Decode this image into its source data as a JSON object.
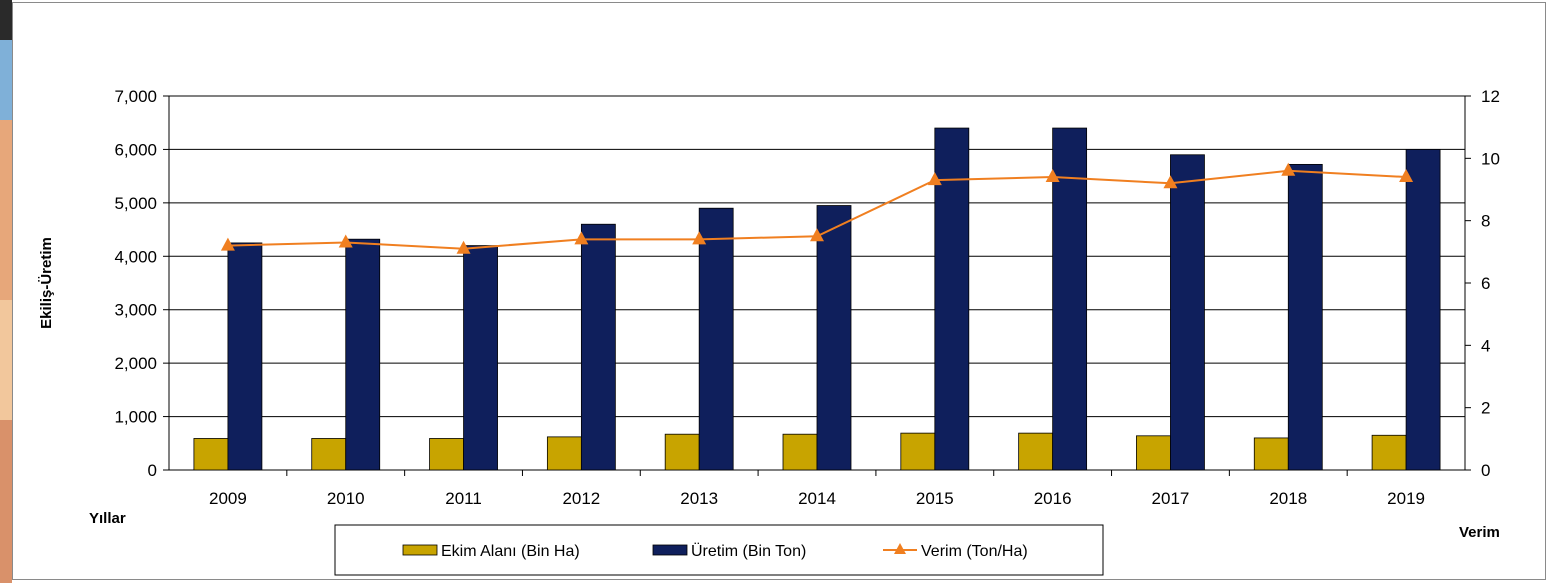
{
  "chart_data": {
    "type": "bar",
    "categories": [
      "2009",
      "2010",
      "2011",
      "2012",
      "2013",
      "2014",
      "2015",
      "2016",
      "2017",
      "2018",
      "2019"
    ],
    "series": [
      {
        "name": "Ekim Alanı (Bin Ha)",
        "type": "bar",
        "axis": "left",
        "color": "#c8a400",
        "values": [
          590,
          590,
          590,
          620,
          670,
          670,
          690,
          690,
          640,
          600,
          650
        ]
      },
      {
        "name": "Üretim (Bin Ton)",
        "type": "bar",
        "axis": "left",
        "color": "#0f1f5c",
        "values": [
          4250,
          4320,
          4200,
          4600,
          4900,
          4950,
          6400,
          6400,
          5900,
          5720,
          6000
        ]
      },
      {
        "name": "Verim (Ton/Ha)",
        "type": "line",
        "axis": "right",
        "color": "#f07f20",
        "marker": "triangle",
        "values": [
          7.2,
          7.3,
          7.1,
          7.4,
          7.4,
          7.5,
          9.3,
          9.4,
          9.2,
          9.6,
          9.4
        ]
      }
    ],
    "ylabel": "Ekiliş-Üretim",
    "xlabel": "Yıllar",
    "y2label": "Verim",
    "ylim": [
      0,
      7000
    ],
    "y2lim": [
      0,
      12
    ],
    "yticks": [
      "0",
      "1,000",
      "2,000",
      "3,000",
      "4,000",
      "5,000",
      "6,000",
      "7,000"
    ],
    "y2ticks": [
      "0",
      "2",
      "4",
      "6",
      "8",
      "10",
      "12"
    ],
    "grid": true,
    "legend_position": "bottom-center"
  }
}
